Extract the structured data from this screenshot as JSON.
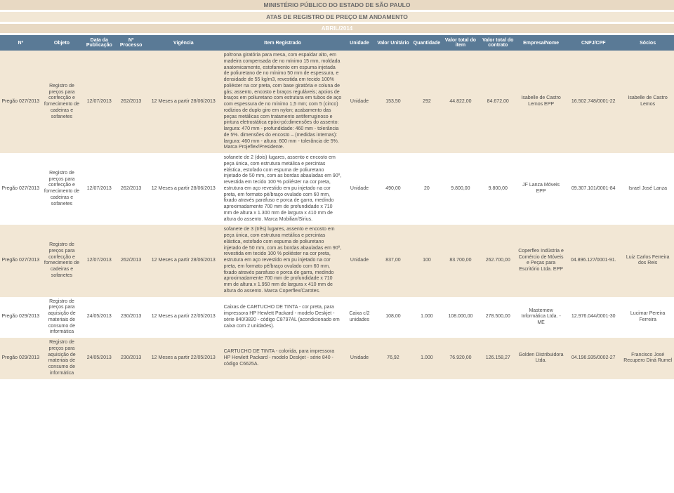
{
  "header": {
    "title": "MINISTÉRIO PÚBLICO DO ESTADO DE SÃO PAULO",
    "subtitle": "ATAS DE REGISTRO DE PREÇO EM ANDAMENTO",
    "period": "ABRIL/2014"
  },
  "columns": [
    "Nº",
    "Objeto",
    "Data da Publicação",
    "Nº Processo",
    "Vigência",
    "Item Registrado",
    "Unidade",
    "Valor Unitário",
    "Quantidade",
    "Valor total do item",
    "Valor total do contrato",
    "Empresa/Nome",
    "CNPJ/CPF",
    "Sócios"
  ],
  "rows": [
    {
      "n": "Pregão 027/2013",
      "objeto": "Registro de preços para confecção e fornecimento de cadeiras e sofanetes",
      "data": "12/07/2013",
      "processo": "262/2013",
      "vigencia": "12 Meses a partir 28/06/2013",
      "item": "poltrona giratória para mesa, com espaldar alto, em madeira compensada de no mínimo 15 mm, moldada anatomicamente, estofamento em espuma injetada de poliuretano de no mínimo 50 mm de espessura, e densidade de 55 kg/m3, revestida em tecido 100% poliéster na cor preta, com base giratória e coluna de gás; assento, encosto e braços reguláveis; apoios de braços em poliuretano com estrutura em tubos de aço com espessura de no mínimo 1,5 mm; com 5 (cinco) rodízios de duplo giro em nylon; acabamento das peças metálicas com tratamento antiferruginoso e pintura eletrostática epóxi-pó:dimensões do assento: largura: 470 mm - profundidade: 460 mm - tolerância de 5%. dimensões do encosto – (medidas internas): largura: 460 mm - altura: 600 mm - tolerância de 5%. Marca Projeflex/Presidente.",
      "unidade": "Unidade",
      "vu": "153,50",
      "qtd": "292",
      "vti": "44.822,00",
      "vtc": "84.672,00",
      "empresa": "Isabelle de Castro Lemos EPP",
      "cnpj": "16.502.748/0001-22",
      "socios": "Isabelle de Castro Lemos"
    },
    {
      "n": "Pregão 027/2013",
      "objeto": "Registro de preços para confecção e fornecimento de cadeiras e sofanetes",
      "data": "12/07/2013",
      "processo": "262/2013",
      "vigencia": "12 Meses a partir 28/06/2013",
      "item": "sofanete de 2 (dois) lugares, assento e encosto em peça única, com estrutura metálica e percintas elástica, estofado com espuma de poliuretano injetado de 50 mm, com as bordas abauladas em 90º, revestida em tecido 100 % poliéster na cor preta, estrutura em aço revestido em pu injetado na cor preta, em formato pé/braço ovulado com 60 mm, fixado através parafuso e porca de garra, medindo aproximadamente 700 mm de profundidade x 710 mm de altura x 1.300 mm de largura x 410 mm de altura do assento. Marca Mobilian/Sirius.",
      "unidade": "Unidade",
      "vu": "490,00",
      "qtd": "20",
      "vti": "9.800,00",
      "vtc": "9.800,00",
      "empresa": "JF Lanza Móveis EPP",
      "cnpj": "09.307.101/0001-84",
      "socios": "Israel José Lanza"
    },
    {
      "n": "Pregão 027/2013",
      "objeto": "Registro de preços para confecção e fornecimento de cadeiras e sofanetes",
      "data": "12/07/2013",
      "processo": "262/2013",
      "vigencia": "12 Meses a partir 28/06/2013",
      "item": "sofanete de 3 (três) lugares, assento e encosto em peça única, com estrutura metálica e percintas elástica, estofado com espuma de poliuretano injetado de 50 mm, com as bordas abauladas em 90º, revestida em tecido 100 % poliéster na cor preta, estrutura em aço revestido em pu injetado na cor preta, em formato pé/braço ovulado com 60 mm, fixado através parafuso e porca de garra, medindo aproximadamente 700 mm de profundidade x 710 mm de altura x 1.950 mm de largura x 410 mm de altura do assento. Marca Coperflex/Carotes.",
      "unidade": "Unidade",
      "vu": "837,00",
      "qtd": "100",
      "vti": "83.700,00",
      "vtc": "262.700,00",
      "empresa": "Coperflex Indústria e Comércio de Móveis e Peças para Escritório Ltda. EPP",
      "cnpj": "04.896.127/0001-91.",
      "socios": "Luiz Carlos Ferreira dos Reis"
    },
    {
      "n": "Pregão 029/2013",
      "objeto": "Registro de preços para aquisição de materiais de consumo de informática",
      "data": "24/05/2013",
      "processo": "230/2013",
      "vigencia": "12 Meses a partir 22/05/2013",
      "item": "Caixas de CARTUCHO DE TINTA - cor preta, para impressora HP Hewlett Packard - modelo Deskjet - série 840/3820 - código C8797AL (acondicionado em caixa com 2 unidades).",
      "unidade": "Caixa c/2 unidades",
      "vu": "108,00",
      "qtd": "1.000",
      "vti": "108.000,00",
      "vtc": "278.500,00",
      "empresa": "Masternew Informática Ltda. - ME",
      "cnpj": "12.976.044/0001-30",
      "socios": "Lucimar Pereira Ferreira"
    },
    {
      "n": "Pregão 029/2013",
      "objeto": "Registro de preços para aquisição de materiais de consumo de informática",
      "data": "24/05/2013",
      "processo": "230/2013",
      "vigencia": "12 Meses a partir 22/05/2013",
      "item": "CARTUCHO DE TINTA - colorida, para impressora HP Hewlett Packard - modelo Deskjet - série 840 - código C6625A.",
      "unidade": "Unidade",
      "vu": "76,92",
      "qtd": "1.000",
      "vti": "76.920,00",
      "vtc": "126.158,27",
      "empresa": "Golden Distribuidora Ltda.",
      "cnpj": "04.196.935/0002-27",
      "socios": "Francisco José Recupero Diná Rumel"
    }
  ],
  "style": {
    "title_bg": "#e8d9c3",
    "subtitle_bg": "#f2e7d5",
    "header_bg": "#5a7a96",
    "header_fg": "#ffffff",
    "row_even_bg": "#f2e7d5",
    "row_odd_bg": "#ffffff",
    "text_color": "#4a4a4a",
    "font_size_body": 7,
    "font_size_title": 8.5
  }
}
